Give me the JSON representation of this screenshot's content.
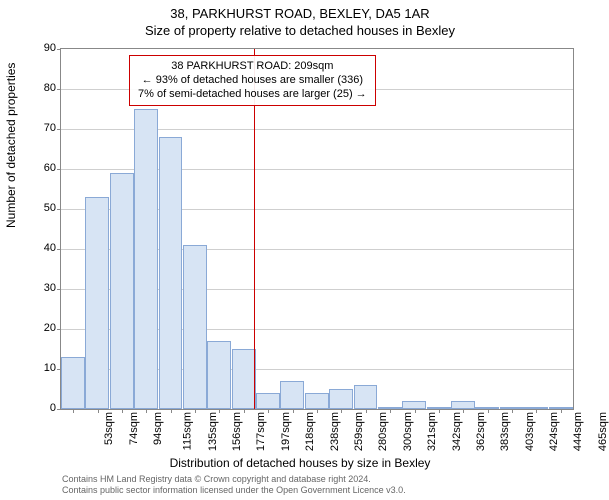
{
  "header": {
    "address": "38, PARKHURST ROAD, BEXLEY, DA5 1AR",
    "subtitle": "Size of property relative to detached houses in Bexley"
  },
  "chart": {
    "type": "histogram",
    "ylabel": "Number of detached properties",
    "xlabel": "Distribution of detached houses by size in Bexley",
    "ylim": [
      0,
      90
    ],
    "ytick_step": 10,
    "bar_fill": "#d7e4f4",
    "bar_border": "#8aa9d6",
    "grid_color": "#cfcfcf",
    "axis_color": "#888888",
    "background_color": "#ffffff",
    "categories": [
      "53sqm",
      "74sqm",
      "94sqm",
      "115sqm",
      "135sqm",
      "156sqm",
      "177sqm",
      "197sqm",
      "218sqm",
      "238sqm",
      "259sqm",
      "280sqm",
      "300sqm",
      "321sqm",
      "342sqm",
      "362sqm",
      "383sqm",
      "403sqm",
      "424sqm",
      "444sqm",
      "465sqm"
    ],
    "values": [
      13,
      53,
      59,
      75,
      68,
      41,
      17,
      15,
      4,
      7,
      4,
      5,
      6,
      0.5,
      2,
      0.5,
      2,
      0.5,
      0.5,
      0.5,
      0.5
    ],
    "reference_line_index": 7.4,
    "reference_line_color": "#cc0000",
    "annotation": {
      "line1": "38 PARKHURST ROAD: 209sqm",
      "line2": "← 93% of detached houses are smaller (336)",
      "line3": "7% of semi-detached houses are larger (25) →",
      "border_color": "#cc0000"
    },
    "label_fontsize": 12,
    "tick_fontsize": 11,
    "title_fontsize": 13
  },
  "attribution": {
    "line1": "Contains HM Land Registry data © Crown copyright and database right 2024.",
    "line2": "Contains public sector information licensed under the Open Government Licence v3.0."
  }
}
